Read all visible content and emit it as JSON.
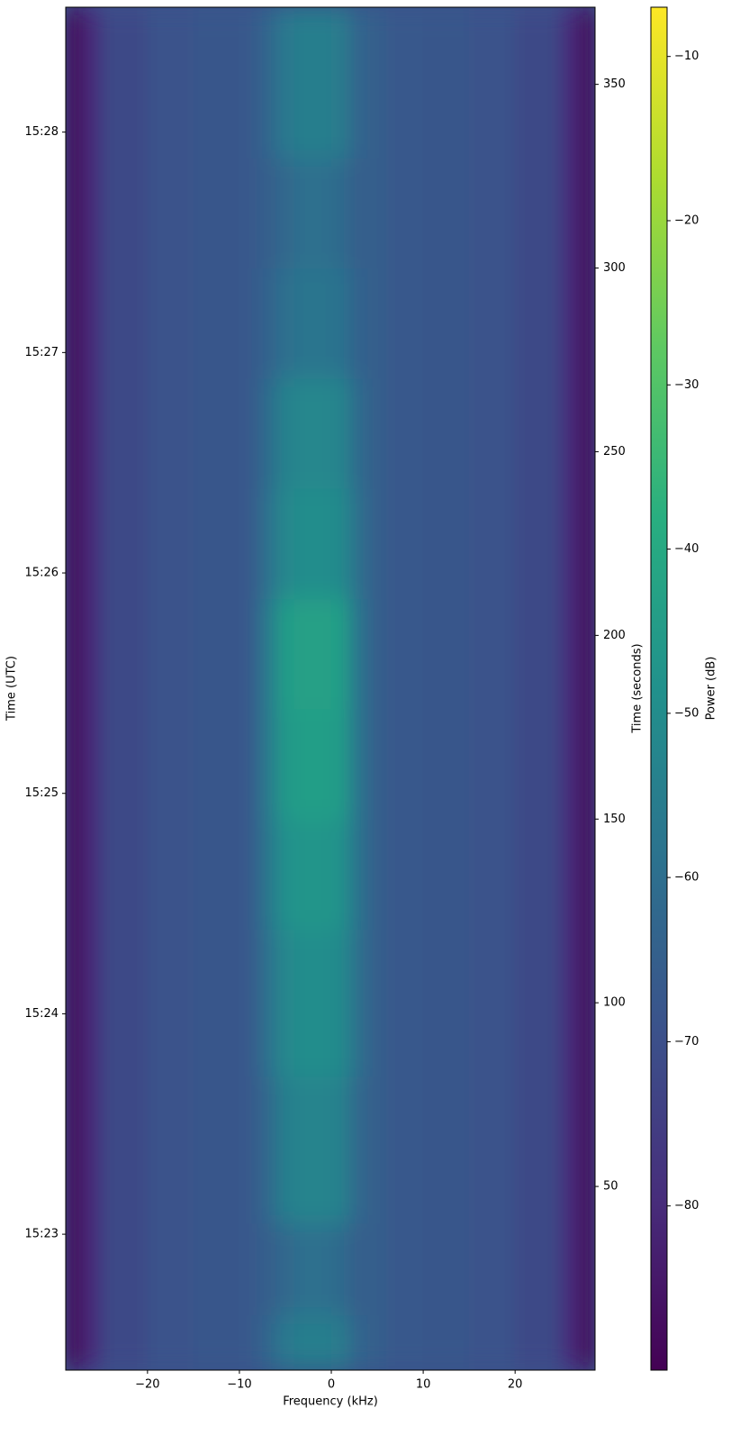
{
  "chart_data": {
    "type": "heatmap",
    "x_label": "Frequency (kHz)",
    "y_label": "Time (UTC)",
    "y2_label": "Time (seconds)",
    "xlim": [
      -28.9,
      28.7
    ],
    "xticks": [
      {
        "value": -20,
        "label": "−20"
      },
      {
        "value": -10,
        "label": "−10"
      },
      0,
      10,
      20
    ],
    "ylim": [
      0,
      371
    ],
    "yticks": [
      {
        "value": 37,
        "label": "15:23"
      },
      {
        "value": 97,
        "label": "15:24"
      },
      {
        "value": 157,
        "label": "15:25"
      },
      {
        "value": 217,
        "label": "15:26"
      },
      {
        "value": 277,
        "label": "15:27"
      },
      {
        "value": 337,
        "label": "15:28"
      }
    ],
    "y2lim": [
      0,
      371
    ],
    "y2ticks": [
      50,
      100,
      150,
      200,
      250,
      300,
      350
    ],
    "colorbar": {
      "label": "Power (dB)",
      "colormap": "viridis",
      "lim": [
        -90,
        -7
      ],
      "ticks": [
        {
          "value": -10,
          "label": "−10"
        },
        {
          "value": -20,
          "label": "−20"
        },
        {
          "value": -30,
          "label": "−30"
        },
        {
          "value": -40,
          "label": "−40"
        },
        {
          "value": -50,
          "label": "−50"
        },
        {
          "value": -60,
          "label": "−60"
        },
        {
          "value": -70,
          "label": "−70"
        },
        {
          "value": -80,
          "label": "−80"
        }
      ]
    },
    "x_edges": [
      -28.9,
      -27,
      -25,
      -20,
      -15,
      -10,
      -8,
      -6,
      -4,
      -2,
      0,
      2,
      4,
      6,
      10,
      15,
      20,
      25,
      27,
      28.7
    ],
    "y_edges": [
      0,
      15,
      40,
      80,
      120,
      150,
      180,
      210,
      240,
      270,
      300,
      330,
      371
    ],
    "z": [
      [
        -88,
        -80,
        -72,
        -69,
        -68,
        -67,
        -63,
        -57,
        -55,
        -55,
        -56,
        -63,
        -65,
        -67,
        -68,
        -69,
        -72,
        -80,
        -88
      ],
      [
        -88,
        -80,
        -72,
        -69,
        -68,
        -67,
        -65,
        -62,
        -60,
        -60,
        -61,
        -65,
        -65,
        -67,
        -68,
        -69,
        -72,
        -80,
        -88
      ],
      [
        -88,
        -80,
        -72,
        -69,
        -68,
        -67,
        -62,
        -55,
        -53,
        -53,
        -54,
        -62,
        -65,
        -67,
        -68,
        -69,
        -72,
        -80,
        -88
      ],
      [
        -88,
        -80,
        -72,
        -69,
        -68,
        -67,
        -60,
        -52,
        -50,
        -50,
        -51,
        -60,
        -65,
        -67,
        -68,
        -69,
        -72,
        -80,
        -88
      ],
      [
        -88,
        -80,
        -72,
        -69,
        -68,
        -67,
        -58,
        -49,
        -47,
        -47,
        -48,
        -59,
        -65,
        -67,
        -68,
        -69,
        -72,
        -80,
        -88
      ],
      [
        -88,
        -80,
        -72,
        -69,
        -68,
        -67,
        -57,
        -46,
        -44,
        -44,
        -45,
        -58,
        -65,
        -67,
        -68,
        -69,
        -72,
        -80,
        -88
      ],
      [
        -88,
        -80,
        -72,
        -69,
        -68,
        -67,
        -57,
        -45,
        -43,
        -43,
        -44,
        -58,
        -65,
        -67,
        -68,
        -69,
        -72,
        -80,
        -88
      ],
      [
        -88,
        -80,
        -72,
        -69,
        -68,
        -67,
        -60,
        -52,
        -50,
        -50,
        -51,
        -60,
        -65,
        -67,
        -68,
        -69,
        -72,
        -80,
        -88
      ],
      [
        -88,
        -80,
        -72,
        -69,
        -68,
        -67,
        -61,
        -54,
        -52,
        -52,
        -53,
        -61,
        -65,
        -67,
        -68,
        -69,
        -72,
        -80,
        -88
      ],
      [
        -88,
        -80,
        -72,
        -69,
        -68,
        -67,
        -64,
        -60,
        -58,
        -58,
        -59,
        -64,
        -65,
        -67,
        -68,
        -69,
        -72,
        -80,
        -88
      ],
      [
        -88,
        -80,
        -72,
        -69,
        -68,
        -67,
        -65,
        -62,
        -60,
        -60,
        -61,
        -65,
        -65,
        -67,
        -68,
        -69,
        -72,
        -80,
        -88
      ],
      [
        -88,
        -80,
        -72,
        -69,
        -68,
        -67,
        -63,
        -57,
        -55,
        -55,
        -56,
        -63,
        -65,
        -67,
        -68,
        -69,
        -72,
        -80,
        -88
      ]
    ]
  }
}
